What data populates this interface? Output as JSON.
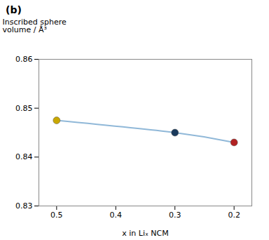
{
  "chart_data": {
    "type": "line",
    "title": "(b)",
    "x": [
      0.5,
      0.3,
      0.2
    ],
    "values": [
      0.8475,
      0.845,
      0.843
    ],
    "colors": [
      "#c9a800",
      "#1a3a5c",
      "#b22222"
    ],
    "color": "#90b8d8",
    "marker": "o",
    "xlim": [
      0.53,
      0.17
    ],
    "ylim": [
      0.83,
      0.86
    ],
    "xticks": [
      0.5,
      0.4,
      0.3,
      0.2
    ],
    "yticks": [
      0.83,
      0.84,
      0.85,
      0.86
    ],
    "xlabel": "x in Liₓ NCM",
    "ylabel": "Inscribed sphere\nvolume / Å³"
  }
}
